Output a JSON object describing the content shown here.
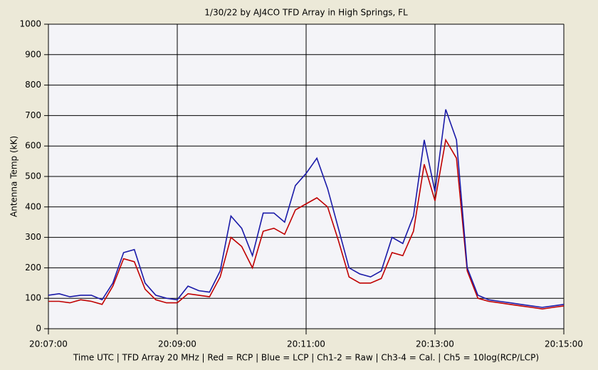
{
  "chart_data": {
    "type": "line",
    "title": "1/30/22  by  AJ4CO TFD Array  in  High Springs, FL",
    "ylabel": "Antenna Temp (kK)",
    "xlabel": "Time UTC  |  TFD Array 20 MHz  |  Red = RCP  |  Blue = LCP  |  Ch1-2 = Raw  |  Ch3-4 = Cal.  |  Ch5 = 10log(RCP/LCP)",
    "x": [
      "20:07:00",
      "20:07:10",
      "20:07:20",
      "20:07:30",
      "20:07:40",
      "20:07:50",
      "20:08:00",
      "20:08:10",
      "20:08:20",
      "20:08:30",
      "20:08:40",
      "20:08:50",
      "20:09:00",
      "20:09:10",
      "20:09:20",
      "20:09:30",
      "20:09:40",
      "20:09:50",
      "20:10:00",
      "20:10:10",
      "20:10:20",
      "20:10:30",
      "20:10:40",
      "20:10:50",
      "20:11:00",
      "20:11:10",
      "20:11:20",
      "20:11:30",
      "20:11:40",
      "20:11:50",
      "20:12:00",
      "20:12:10",
      "20:12:20",
      "20:12:30",
      "20:12:40",
      "20:12:50",
      "20:13:00",
      "20:13:10",
      "20:13:20",
      "20:13:30",
      "20:13:40",
      "20:13:50",
      "20:14:00",
      "20:14:10",
      "20:14:20",
      "20:14:30",
      "20:14:40",
      "20:14:50",
      "20:15:00"
    ],
    "series": [
      {
        "name": "RCP",
        "color": "#c00000",
        "values": [
          90,
          90,
          85,
          95,
          90,
          80,
          140,
          230,
          220,
          130,
          95,
          85,
          85,
          115,
          110,
          105,
          170,
          300,
          270,
          200,
          320,
          330,
          310,
          390,
          410,
          430,
          400,
          290,
          170,
          150,
          150,
          165,
          250,
          240,
          320,
          540,
          420,
          620,
          560,
          190,
          100,
          90,
          85,
          80,
          75,
          70,
          65,
          70,
          75
        ]
      },
      {
        "name": "LCP",
        "color": "#1a1aa8",
        "values": [
          110,
          115,
          105,
          110,
          110,
          95,
          150,
          250,
          260,
          150,
          110,
          100,
          95,
          140,
          125,
          120,
          190,
          370,
          330,
          240,
          380,
          380,
          350,
          470,
          510,
          560,
          460,
          330,
          200,
          180,
          170,
          190,
          300,
          280,
          370,
          620,
          450,
          720,
          620,
          200,
          110,
          95,
          90,
          85,
          80,
          75,
          70,
          75,
          80
        ]
      }
    ],
    "xlim": [
      "20:07:00",
      "20:15:00"
    ],
    "xticks": [
      "20:07:00",
      "20:09:00",
      "20:11:00",
      "20:13:00",
      "20:15:00"
    ],
    "ylim": [
      0,
      1000
    ],
    "yticks": [
      0,
      100,
      200,
      300,
      400,
      500,
      600,
      700,
      800,
      900,
      1000
    ],
    "grid": true
  }
}
